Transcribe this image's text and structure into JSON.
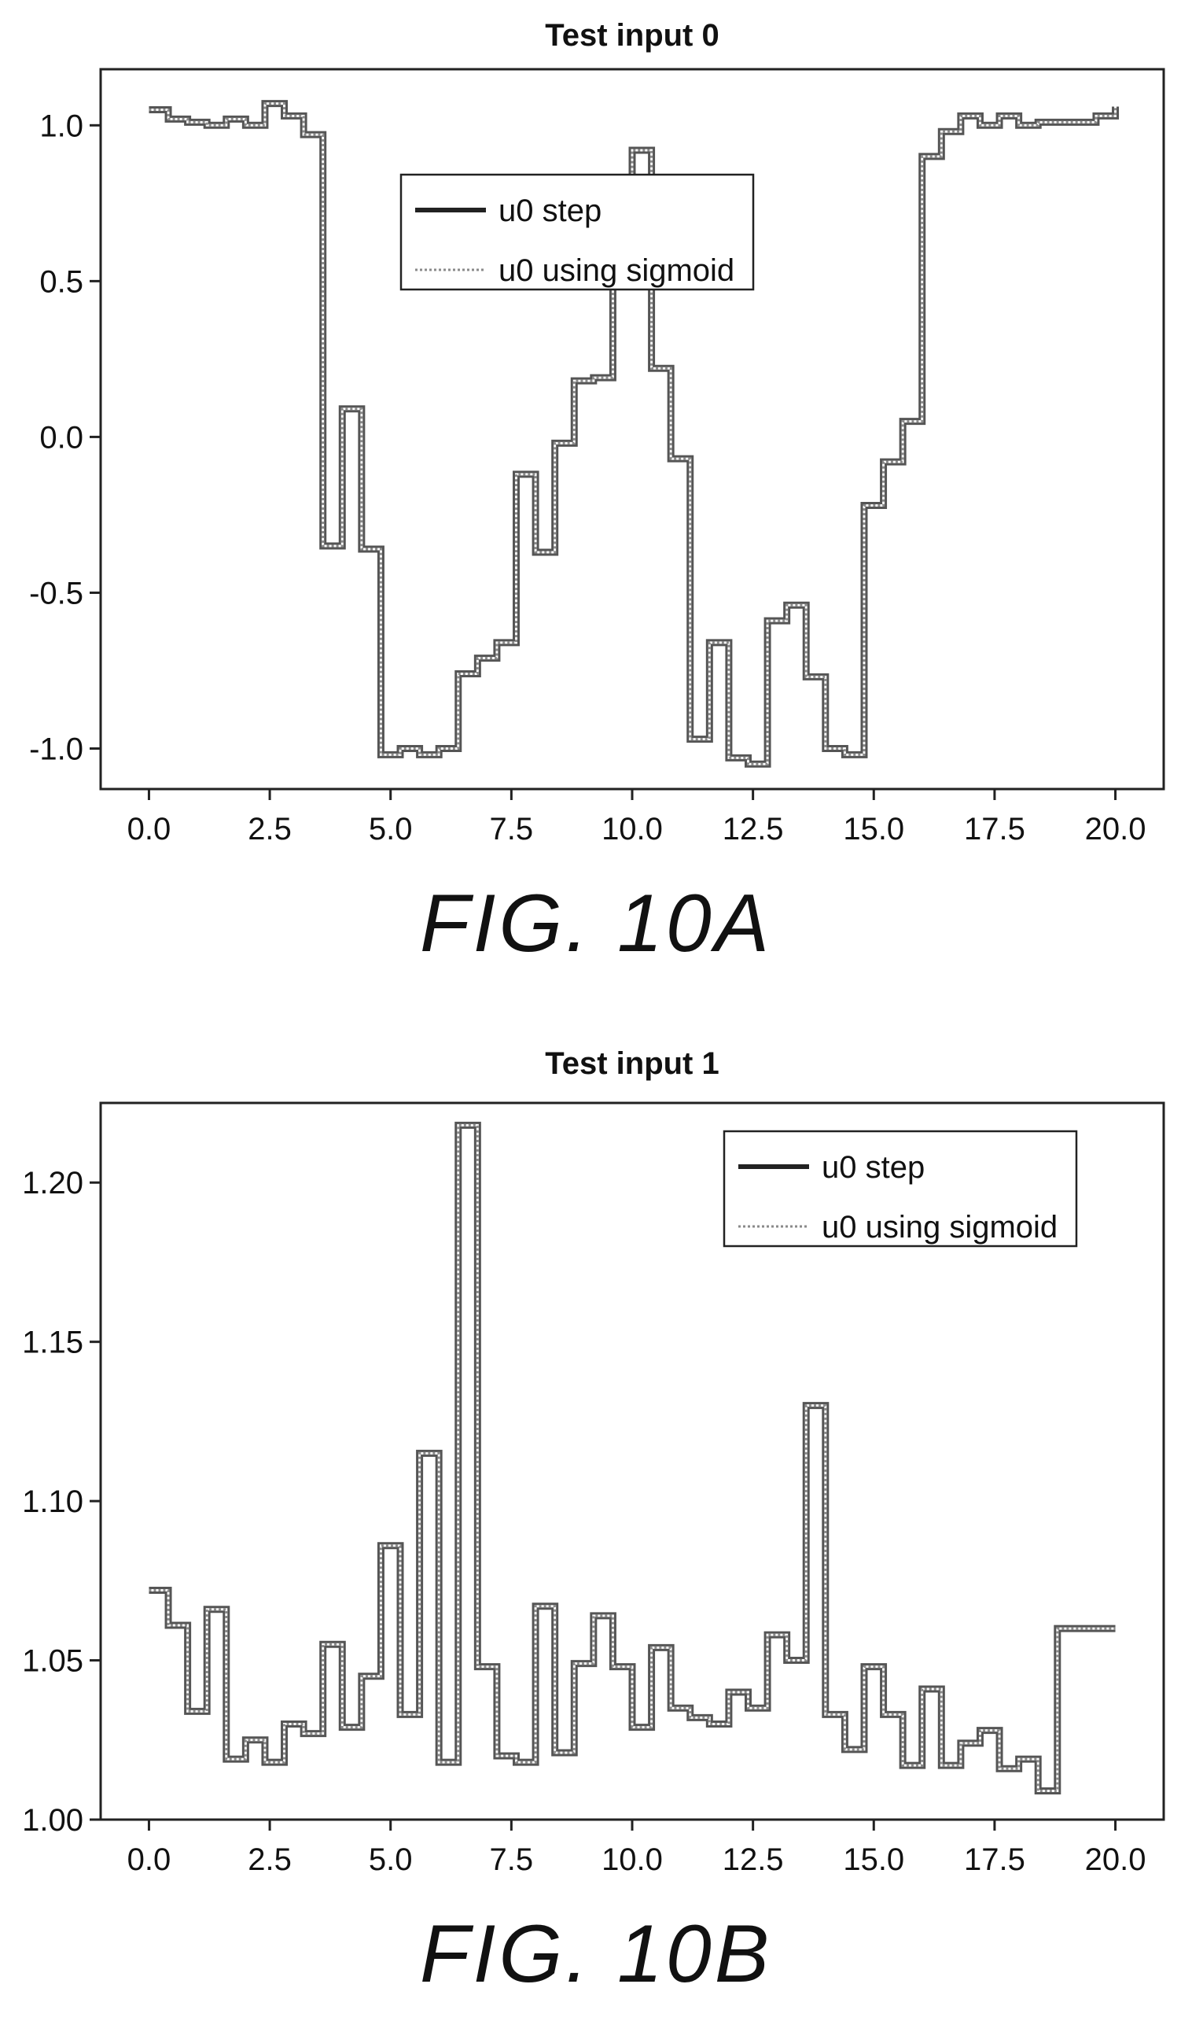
{
  "figures": [
    {
      "caption": "FIG. 10A"
    },
    {
      "caption": "FIG. 10B"
    }
  ],
  "chart_data": [
    {
      "type": "line",
      "title": "Test input 0",
      "xlabel": "",
      "ylabel": "",
      "xlim": [
        -1,
        21
      ],
      "ylim": [
        -1.13,
        1.18
      ],
      "xticks": [
        "0.0",
        "2.5",
        "5.0",
        "7.5",
        "10.0",
        "12.5",
        "15.0",
        "17.5",
        "20.0"
      ],
      "xtick_values": [
        0,
        2.5,
        5,
        7.5,
        10,
        12.5,
        15,
        17.5,
        20
      ],
      "yticks": [
        "1.0",
        "0.5",
        "0.0",
        "-0.5",
        "-1.0"
      ],
      "ytick_values": [
        1.0,
        0.5,
        0.0,
        -0.5,
        -1.0
      ],
      "grid": false,
      "legend_position": "upper-center",
      "step_width": 0.4,
      "series": [
        {
          "name": "u0 step",
          "style": "solid",
          "x": [
            0,
            0.4,
            0.8,
            1.2,
            1.6,
            2.0,
            2.4,
            2.8,
            3.2,
            3.6,
            4.0,
            4.4,
            4.8,
            5.2,
            5.6,
            6.0,
            6.4,
            6.8,
            7.2,
            7.6,
            8.0,
            8.4,
            8.8,
            9.2,
            9.6,
            10.0,
            10.4,
            10.8,
            11.2,
            11.6,
            12.0,
            12.4,
            12.8,
            13.2,
            13.6,
            14.0,
            14.4,
            14.8,
            15.2,
            15.6,
            16.0,
            16.4,
            16.8,
            17.2,
            17.6,
            18.0,
            18.4,
            18.8,
            19.2,
            19.6,
            20.0
          ],
          "y": [
            1.05,
            1.02,
            1.01,
            1.0,
            1.02,
            1.0,
            1.07,
            1.03,
            0.97,
            -0.35,
            0.09,
            -0.36,
            -1.02,
            -1.0,
            -1.02,
            -1.0,
            -0.76,
            -0.71,
            -0.66,
            -0.12,
            -0.37,
            -0.02,
            0.18,
            0.19,
            0.5,
            0.92,
            0.22,
            -0.07,
            -0.97,
            -0.66,
            -1.03,
            -1.05,
            -0.59,
            -0.54,
            -0.77,
            -1.0,
            -1.02,
            -0.22,
            -0.08,
            0.05,
            0.9,
            0.98,
            1.03,
            1.0,
            1.03,
            1.0,
            1.01,
            1.01,
            1.01,
            1.03,
            1.06
          ]
        },
        {
          "name": "u0 using sigmoid",
          "style": "dotted",
          "x": [
            0,
            0.4,
            0.8,
            1.2,
            1.6,
            2.0,
            2.4,
            2.8,
            3.2,
            3.6,
            4.0,
            4.4,
            4.8,
            5.2,
            5.6,
            6.0,
            6.4,
            6.8,
            7.2,
            7.6,
            8.0,
            8.4,
            8.8,
            9.2,
            9.6,
            10.0,
            10.4,
            10.8,
            11.2,
            11.6,
            12.0,
            12.4,
            12.8,
            13.2,
            13.6,
            14.0,
            14.4,
            14.8,
            15.2,
            15.6,
            16.0,
            16.4,
            16.8,
            17.2,
            17.6,
            18.0,
            18.4,
            18.8,
            19.2,
            19.6,
            20.0
          ],
          "y": [
            1.05,
            1.02,
            1.01,
            1.0,
            1.02,
            1.0,
            1.07,
            1.03,
            0.97,
            -0.35,
            0.09,
            -0.36,
            -1.02,
            -1.0,
            -1.02,
            -1.0,
            -0.76,
            -0.71,
            -0.66,
            -0.12,
            -0.37,
            -0.02,
            0.18,
            0.19,
            0.5,
            0.92,
            0.22,
            -0.07,
            -0.97,
            -0.66,
            -1.03,
            -1.05,
            -0.59,
            -0.54,
            -0.77,
            -1.0,
            -1.02,
            -0.22,
            -0.08,
            0.05,
            0.9,
            0.98,
            1.03,
            1.0,
            1.03,
            1.0,
            1.01,
            1.01,
            1.01,
            1.03,
            1.06
          ]
        }
      ]
    },
    {
      "type": "line",
      "title": "Test input 1",
      "xlabel": "",
      "ylabel": "",
      "xlim": [
        -1,
        21
      ],
      "ylim": [
        1.0,
        1.225
      ],
      "xticks": [
        "0.0",
        "2.5",
        "5.0",
        "7.5",
        "10.0",
        "12.5",
        "15.0",
        "17.5",
        "20.0"
      ],
      "xtick_values": [
        0,
        2.5,
        5,
        7.5,
        10,
        12.5,
        15,
        17.5,
        20
      ],
      "yticks": [
        "1.20",
        "1.15",
        "1.10",
        "1.05",
        "1.00"
      ],
      "ytick_values": [
        1.2,
        1.15,
        1.1,
        1.05,
        1.0
      ],
      "grid": false,
      "legend_position": "upper-right",
      "step_width": 0.4,
      "series": [
        {
          "name": "u0 step",
          "style": "solid",
          "x": [
            0,
            0.4,
            0.8,
            1.2,
            1.6,
            2.0,
            2.4,
            2.8,
            3.2,
            3.6,
            4.0,
            4.4,
            4.8,
            5.2,
            5.6,
            6.0,
            6.4,
            6.8,
            7.2,
            7.6,
            8.0,
            8.4,
            8.8,
            9.2,
            9.6,
            10.0,
            10.4,
            10.8,
            11.2,
            11.6,
            12.0,
            12.4,
            12.8,
            13.2,
            13.6,
            14.0,
            14.4,
            14.8,
            15.2,
            15.6,
            16.0,
            16.4,
            16.8,
            17.2,
            17.6,
            18.0,
            18.4,
            18.8,
            19.2,
            19.6,
            20.0
          ],
          "y": [
            1.072,
            1.061,
            1.034,
            1.066,
            1.019,
            1.025,
            1.018,
            1.03,
            1.027,
            1.055,
            1.029,
            1.045,
            1.086,
            1.033,
            1.115,
            1.018,
            1.218,
            1.048,
            1.02,
            1.018,
            1.067,
            1.021,
            1.049,
            1.064,
            1.048,
            1.029,
            1.054,
            1.035,
            1.032,
            1.03,
            1.04,
            1.035,
            1.058,
            1.05,
            1.13,
            1.033,
            1.022,
            1.048,
            1.033,
            1.017,
            1.041,
            1.017,
            1.024,
            1.028,
            1.016,
            1.019,
            1.009,
            1.06,
            1.06,
            1.06,
            1.06
          ]
        },
        {
          "name": "u0 using sigmoid",
          "style": "dotted",
          "x": [
            0,
            0.4,
            0.8,
            1.2,
            1.6,
            2.0,
            2.4,
            2.8,
            3.2,
            3.6,
            4.0,
            4.4,
            4.8,
            5.2,
            5.6,
            6.0,
            6.4,
            6.8,
            7.2,
            7.6,
            8.0,
            8.4,
            8.8,
            9.2,
            9.6,
            10.0,
            10.4,
            10.8,
            11.2,
            11.6,
            12.0,
            12.4,
            12.8,
            13.2,
            13.6,
            14.0,
            14.4,
            14.8,
            15.2,
            15.6,
            16.0,
            16.4,
            16.8,
            17.2,
            17.6,
            18.0,
            18.4,
            18.8,
            19.2,
            19.6,
            20.0
          ],
          "y": [
            1.072,
            1.061,
            1.034,
            1.066,
            1.019,
            1.025,
            1.018,
            1.03,
            1.027,
            1.055,
            1.029,
            1.045,
            1.086,
            1.033,
            1.115,
            1.018,
            1.218,
            1.048,
            1.02,
            1.018,
            1.067,
            1.021,
            1.049,
            1.064,
            1.048,
            1.029,
            1.054,
            1.035,
            1.032,
            1.03,
            1.04,
            1.035,
            1.058,
            1.05,
            1.13,
            1.033,
            1.022,
            1.048,
            1.033,
            1.017,
            1.041,
            1.017,
            1.024,
            1.028,
            1.016,
            1.019,
            1.009,
            1.06,
            1.06,
            1.06,
            1.06
          ]
        }
      ]
    }
  ]
}
